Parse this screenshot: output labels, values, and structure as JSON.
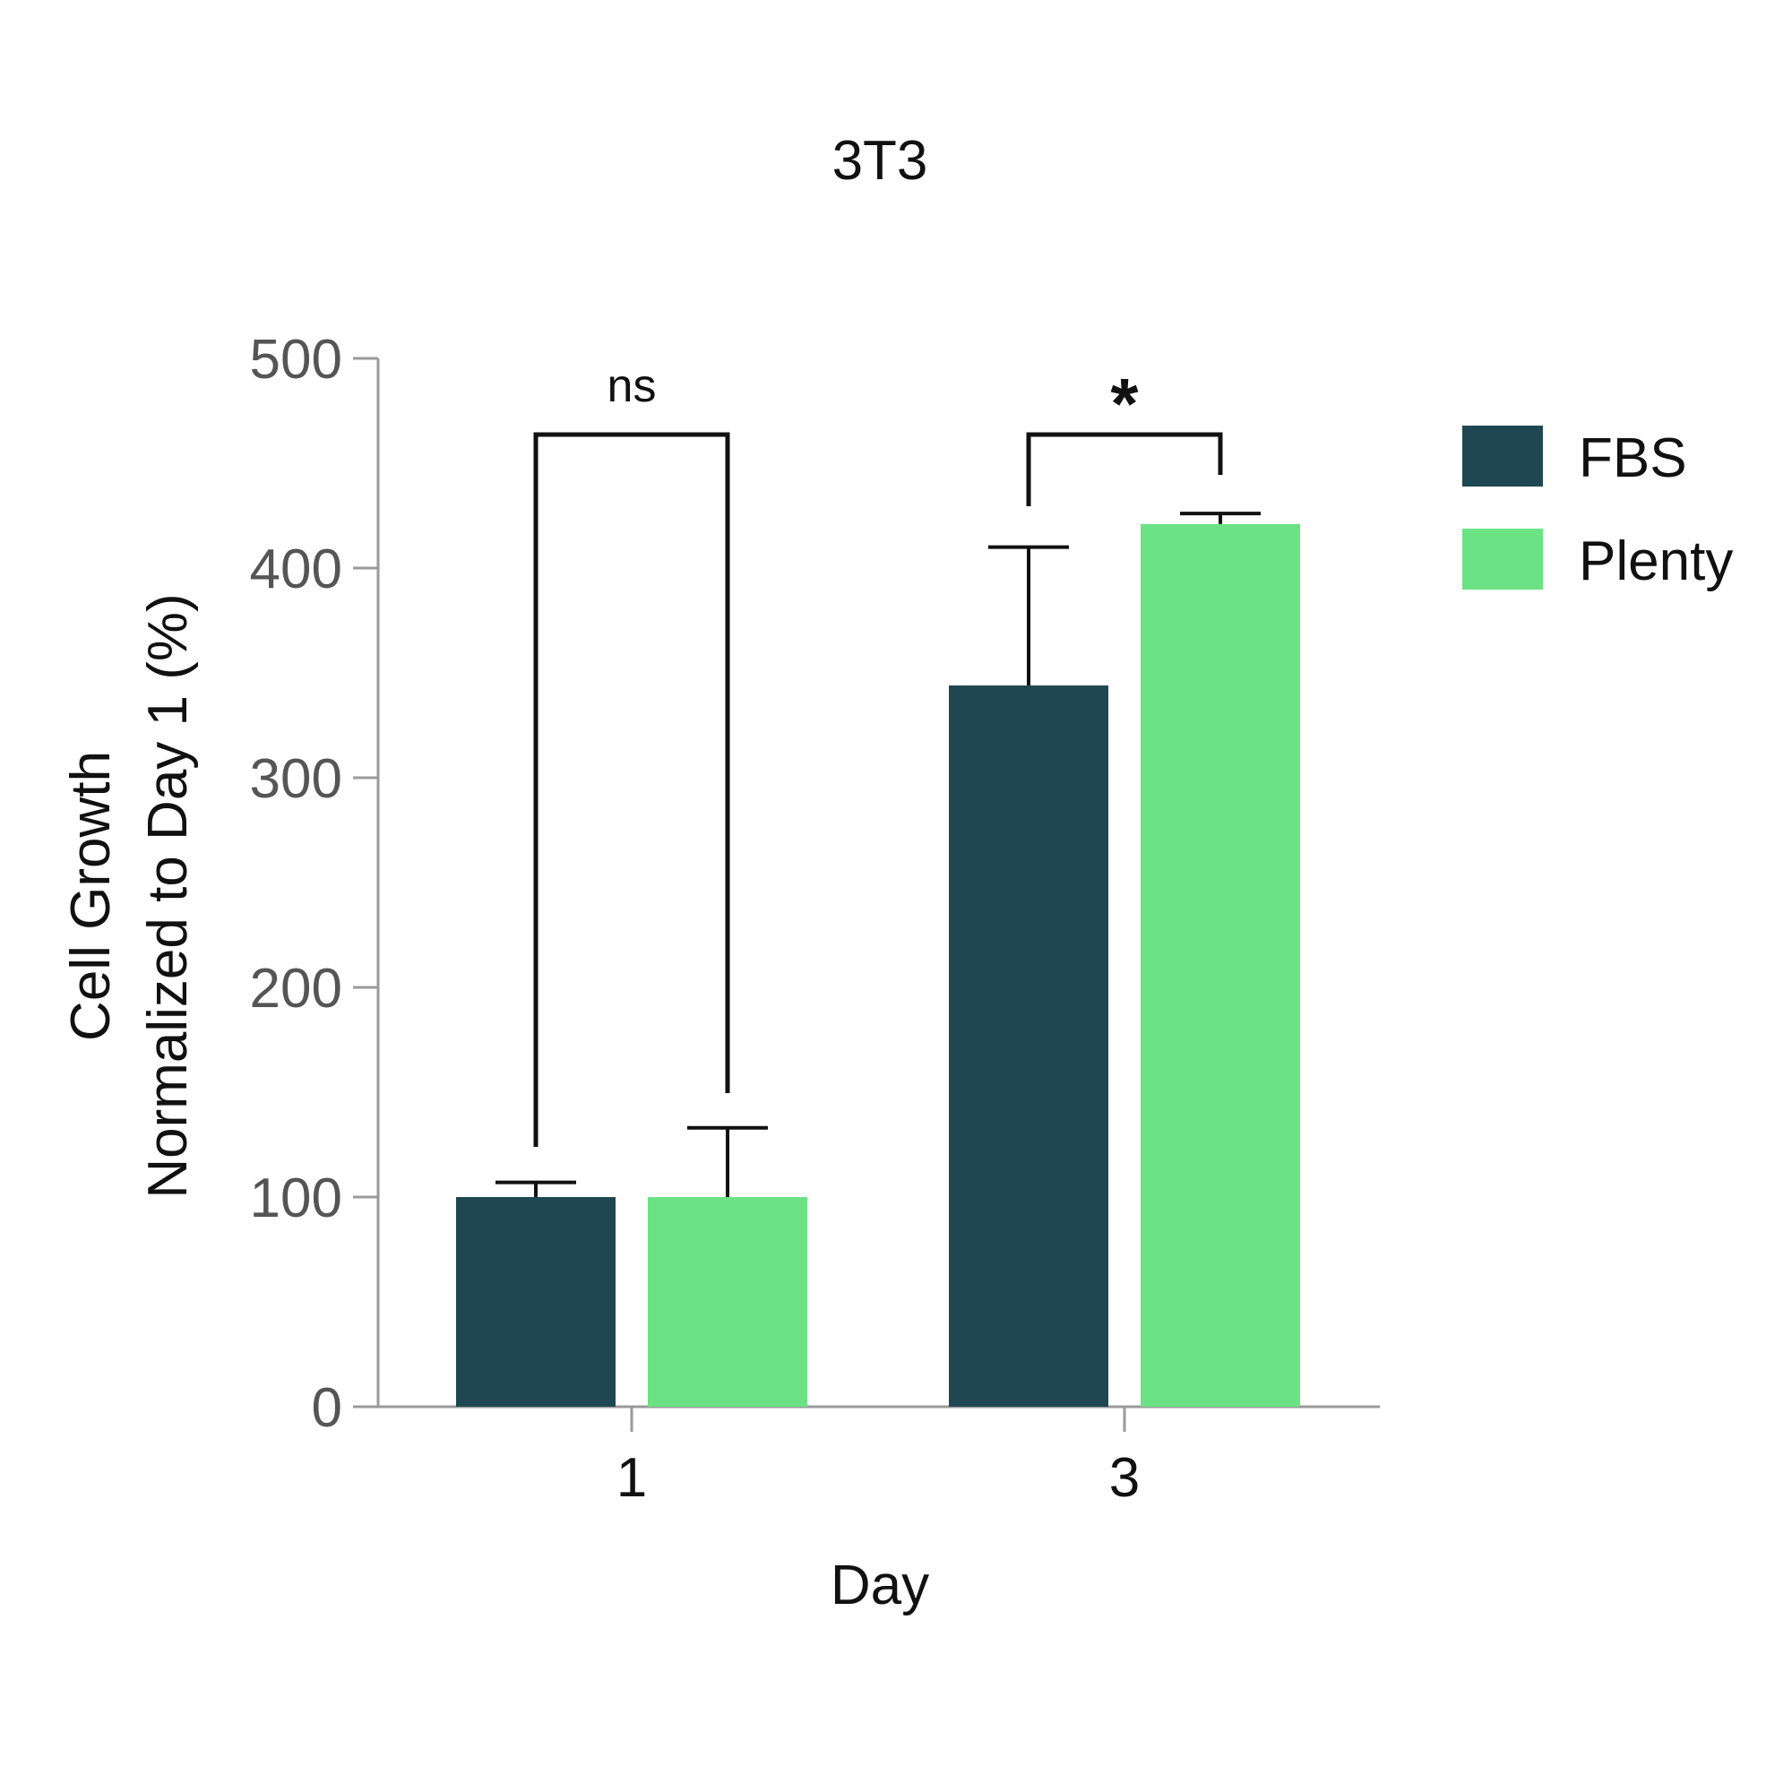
{
  "chart_data": {
    "type": "bar",
    "title": "3T3",
    "xlabel": "Day",
    "ylabel_lines": [
      "Cell Growth",
      "Normalized to Day 1 (%)"
    ],
    "categories": [
      "1",
      "3"
    ],
    "ylim": [
      0,
      500
    ],
    "yticks": [
      0,
      100,
      200,
      300,
      400,
      500
    ],
    "series": [
      {
        "name": "FBS",
        "color": "#1f4752",
        "values": [
          100,
          344
        ],
        "errors": [
          7,
          66
        ]
      },
      {
        "name": "Plenty",
        "color": "#6be283",
        "values": [
          100,
          421
        ],
        "errors": [
          33,
          5
        ]
      }
    ],
    "significance": [
      {
        "category": "1",
        "label": "ns"
      },
      {
        "category": "3",
        "label": "*"
      }
    ],
    "legend_position": "right",
    "grid": false
  }
}
